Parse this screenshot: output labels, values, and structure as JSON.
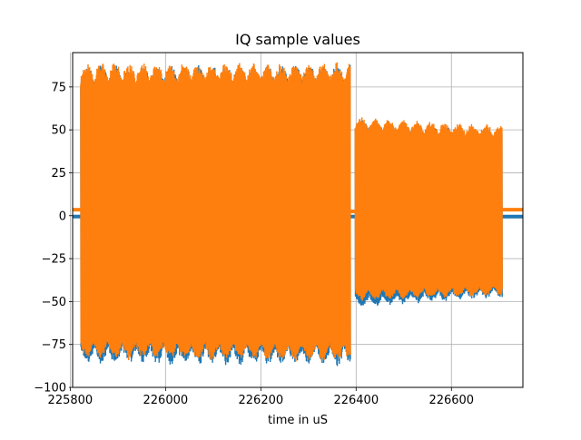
{
  "chart_data": {
    "type": "line",
    "title": "IQ sample values",
    "xlabel": "time in uS",
    "ylabel": "",
    "xlim": [
      225805,
      226750
    ],
    "ylim": [
      -100,
      95
    ],
    "grid": true,
    "x_ticks": [
      225800,
      226000,
      226200,
      226400,
      226600
    ],
    "y_ticks": [
      -100,
      -75,
      -50,
      -25,
      0,
      25,
      50,
      75
    ],
    "series": [
      {
        "color": "#1f77b4",
        "segments": [
          {
            "x_start": 225805,
            "x_end": 225822,
            "kind": "flat",
            "level": -0.5
          },
          {
            "x_start": 225822,
            "x_end": 226388,
            "kind": "burst",
            "env_top_start": 88,
            "env_top_end": 89,
            "env_bot_start": -87,
            "env_bot_end": -88
          },
          {
            "x_start": 226388,
            "x_end": 226398,
            "kind": "flat",
            "level": -0.5
          },
          {
            "x_start": 226398,
            "x_end": 226707,
            "kind": "burst",
            "env_top_start": 57,
            "env_top_end": 51,
            "env_bot_start": -54,
            "env_bot_end": -48
          },
          {
            "x_start": 226707,
            "x_end": 226750,
            "kind": "flat",
            "level": -0.5
          }
        ]
      },
      {
        "color": "#ff7f0e",
        "segments": [
          {
            "x_start": 225805,
            "x_end": 225822,
            "kind": "flat",
            "level": 3.5
          },
          {
            "x_start": 225822,
            "x_end": 226388,
            "kind": "burst",
            "env_top_start": 90,
            "env_top_end": 90,
            "env_bot_start": -84,
            "env_bot_end": -86
          },
          {
            "x_start": 226388,
            "x_end": 226398,
            "kind": "flat",
            "level": 2.5
          },
          {
            "x_start": 226398,
            "x_end": 226707,
            "kind": "burst",
            "env_top_start": 58,
            "env_top_end": 53,
            "env_bot_start": -50,
            "env_bot_end": -47
          },
          {
            "x_start": 226707,
            "x_end": 226750,
            "kind": "flat",
            "level": 3.5
          }
        ]
      }
    ]
  }
}
